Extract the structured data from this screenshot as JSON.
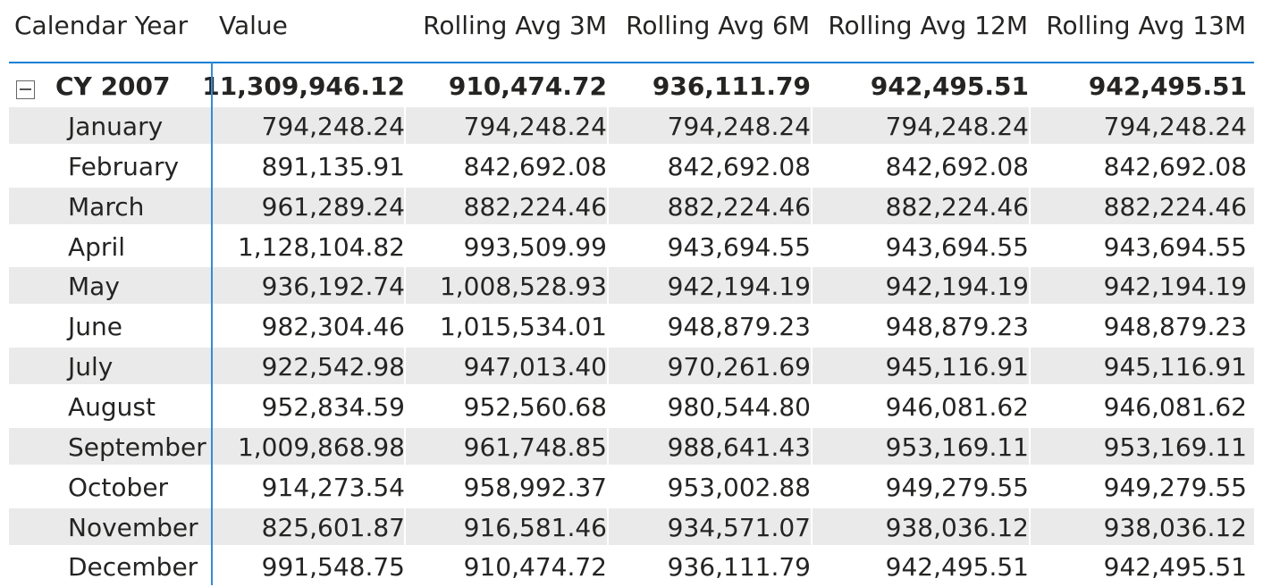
{
  "headers": {
    "calendar_year": "Calendar Year",
    "value": "Value",
    "rolling_3m": "Rolling Avg 3M",
    "rolling_6m": "Rolling Avg 6M",
    "rolling_12m": "Rolling Avg 12M",
    "rolling_13m": "Rolling Avg 13M"
  },
  "year_group": {
    "label": "CY 2007",
    "expanded": true,
    "icon": "collapse-icon",
    "value": "11,309,946.12",
    "rolling_3m": "910,474.72",
    "rolling_6m": "936,111.79",
    "rolling_12m": "942,495.51",
    "rolling_13m": "942,495.51"
  },
  "months": [
    {
      "name": "January",
      "value": "794,248.24",
      "r3": "794,248.24",
      "r6": "794,248.24",
      "r12": "794,248.24",
      "r13": "794,248.24"
    },
    {
      "name": "February",
      "value": "891,135.91",
      "r3": "842,692.08",
      "r6": "842,692.08",
      "r12": "842,692.08",
      "r13": "842,692.08"
    },
    {
      "name": "March",
      "value": "961,289.24",
      "r3": "882,224.46",
      "r6": "882,224.46",
      "r12": "882,224.46",
      "r13": "882,224.46"
    },
    {
      "name": "April",
      "value": "1,128,104.82",
      "r3": "993,509.99",
      "r6": "943,694.55",
      "r12": "943,694.55",
      "r13": "943,694.55"
    },
    {
      "name": "May",
      "value": "936,192.74",
      "r3": "1,008,528.93",
      "r6": "942,194.19",
      "r12": "942,194.19",
      "r13": "942,194.19"
    },
    {
      "name": "June",
      "value": "982,304.46",
      "r3": "1,015,534.01",
      "r6": "948,879.23",
      "r12": "948,879.23",
      "r13": "948,879.23"
    },
    {
      "name": "July",
      "value": "922,542.98",
      "r3": "947,013.40",
      "r6": "970,261.69",
      "r12": "945,116.91",
      "r13": "945,116.91"
    },
    {
      "name": "August",
      "value": "952,834.59",
      "r3": "952,560.68",
      "r6": "980,544.80",
      "r12": "946,081.62",
      "r13": "946,081.62"
    },
    {
      "name": "September",
      "value": "1,009,868.98",
      "r3": "961,748.85",
      "r6": "988,641.43",
      "r12": "953,169.11",
      "r13": "953,169.11"
    },
    {
      "name": "October",
      "value": "914,273.54",
      "r3": "958,992.37",
      "r6": "953,002.88",
      "r12": "949,279.55",
      "r13": "949,279.55"
    },
    {
      "name": "November",
      "value": "825,601.87",
      "r3": "916,581.46",
      "r6": "934,571.07",
      "r12": "938,036.12",
      "r13": "938,036.12"
    },
    {
      "name": "December",
      "value": "991,548.75",
      "r3": "910,474.72",
      "r6": "936,111.79",
      "r12": "942,495.51",
      "r13": "942,495.51"
    }
  ],
  "colors": {
    "header_separator": "#0f7fd4",
    "row_separator": "#2f8ddb",
    "alt_row": "#eaeaea",
    "text": "#252423"
  }
}
